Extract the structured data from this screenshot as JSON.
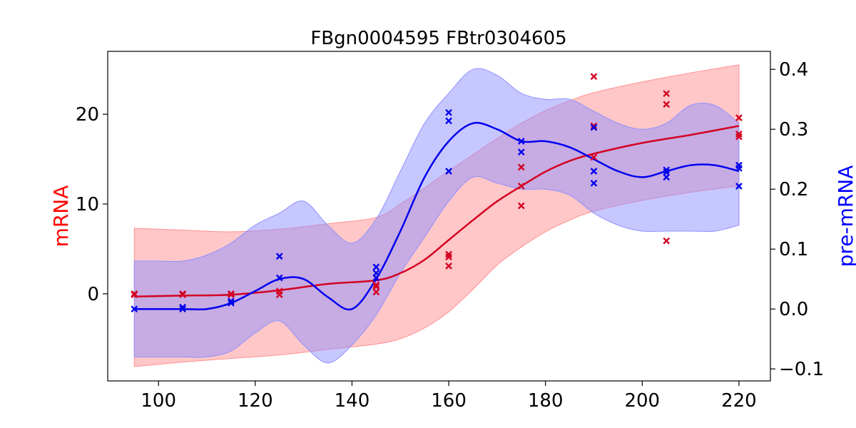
{
  "chart_data": {
    "type": "line",
    "title": "FBgn0004595 FBtr0304605",
    "xlabel": "",
    "xlim": [
      89.5,
      226.5
    ],
    "xticks": [
      "100",
      "120",
      "140",
      "160",
      "180",
      "200",
      "220"
    ],
    "y_left": {
      "label": "mRNA",
      "color": "#ff0000",
      "lim": [
        -9.7,
        27.0
      ],
      "ticks": [
        "0",
        "10",
        "20"
      ]
    },
    "y_right": {
      "label": "pre-mRNA",
      "color": "#0000ff",
      "lim": [
        -0.12,
        0.43
      ],
      "ticks": [
        "0.0",
        "0.1",
        "0.2",
        "0.3",
        "0.4"
      ]
    },
    "grid": false,
    "series": [
      {
        "axis": "left",
        "color": "#d40022",
        "band_color": "#ff9090",
        "mean": [
          [
            95,
            -0.3
          ],
          [
            105,
            -0.2
          ],
          [
            115,
            -0.1
          ],
          [
            125,
            0.4
          ],
          [
            135,
            1.1
          ],
          [
            145,
            1.5
          ],
          [
            150,
            2.3
          ],
          [
            155,
            3.8
          ],
          [
            160,
            6.0
          ],
          [
            165,
            8.2
          ],
          [
            170,
            10.3
          ],
          [
            175,
            12.0
          ],
          [
            180,
            13.6
          ],
          [
            185,
            14.8
          ],
          [
            190,
            15.6
          ],
          [
            200,
            16.8
          ],
          [
            210,
            17.7
          ],
          [
            220,
            18.7
          ]
        ],
        "upper": [
          [
            95,
            7.3
          ],
          [
            105,
            7.1
          ],
          [
            115,
            6.9
          ],
          [
            125,
            7.2
          ],
          [
            135,
            7.8
          ],
          [
            145,
            8.5
          ],
          [
            150,
            10.0
          ],
          [
            155,
            11.8
          ],
          [
            160,
            13.7
          ],
          [
            165,
            15.5
          ],
          [
            170,
            17.3
          ],
          [
            175,
            19.0
          ],
          [
            180,
            20.4
          ],
          [
            185,
            21.5
          ],
          [
            190,
            22.4
          ],
          [
            200,
            23.6
          ],
          [
            210,
            24.6
          ],
          [
            220,
            25.5
          ]
        ],
        "lower": [
          [
            95,
            -8.1
          ],
          [
            105,
            -7.6
          ],
          [
            115,
            -7.2
          ],
          [
            125,
            -6.8
          ],
          [
            135,
            -6.2
          ],
          [
            145,
            -5.6
          ],
          [
            150,
            -5.0
          ],
          [
            155,
            -3.8
          ],
          [
            160,
            -2.0
          ],
          [
            165,
            0.5
          ],
          [
            170,
            3.2
          ],
          [
            175,
            5.2
          ],
          [
            180,
            6.9
          ],
          [
            185,
            8.2
          ],
          [
            190,
            9.2
          ],
          [
            200,
            10.4
          ],
          [
            210,
            11.3
          ],
          [
            220,
            12.0
          ]
        ],
        "points": [
          [
            95,
            0.0
          ],
          [
            95,
            -0.1
          ],
          [
            105,
            0.0
          ],
          [
            105,
            -0.1
          ],
          [
            115,
            0.0
          ],
          [
            115,
            -0.1
          ],
          [
            125,
            0.3
          ],
          [
            125,
            -0.1
          ],
          [
            145,
            1.8
          ],
          [
            145,
            1.0
          ],
          [
            145,
            0.8
          ],
          [
            145,
            0.2
          ],
          [
            160,
            4.4
          ],
          [
            160,
            4.1
          ],
          [
            160,
            3.1
          ],
          [
            175,
            14.1
          ],
          [
            175,
            12.0
          ],
          [
            175,
            9.8
          ],
          [
            190,
            24.2
          ],
          [
            190,
            18.7
          ],
          [
            190,
            15.2
          ],
          [
            205,
            22.3
          ],
          [
            205,
            21.1
          ],
          [
            205,
            5.9
          ],
          [
            220,
            19.6
          ],
          [
            220,
            17.8
          ],
          [
            220,
            17.5
          ]
        ]
      },
      {
        "axis": "right",
        "color": "#0000ee",
        "band_color": "#9090ff",
        "mean": [
          [
            95,
            0.0
          ],
          [
            100,
            0.0
          ],
          [
            105,
            0.0
          ],
          [
            110,
            0.0
          ],
          [
            115,
            0.01
          ],
          [
            120,
            0.03
          ],
          [
            125,
            0.05
          ],
          [
            130,
            0.05
          ],
          [
            135,
            0.02
          ],
          [
            140,
            0.0
          ],
          [
            145,
            0.05
          ],
          [
            150,
            0.13
          ],
          [
            155,
            0.22
          ],
          [
            160,
            0.28
          ],
          [
            165,
            0.31
          ],
          [
            170,
            0.3
          ],
          [
            175,
            0.28
          ],
          [
            180,
            0.28
          ],
          [
            185,
            0.27
          ],
          [
            190,
            0.25
          ],
          [
            195,
            0.23
          ],
          [
            200,
            0.22
          ],
          [
            205,
            0.23
          ],
          [
            210,
            0.24
          ],
          [
            215,
            0.24
          ],
          [
            220,
            0.23
          ]
        ],
        "upper": [
          [
            95,
            0.08
          ],
          [
            100,
            0.08
          ],
          [
            105,
            0.08
          ],
          [
            110,
            0.09
          ],
          [
            115,
            0.11
          ],
          [
            120,
            0.14
          ],
          [
            125,
            0.16
          ],
          [
            130,
            0.18
          ],
          [
            135,
            0.14
          ],
          [
            140,
            0.11
          ],
          [
            145,
            0.15
          ],
          [
            150,
            0.23
          ],
          [
            155,
            0.31
          ],
          [
            160,
            0.36
          ],
          [
            165,
            0.4
          ],
          [
            170,
            0.39
          ],
          [
            175,
            0.36
          ],
          [
            180,
            0.35
          ],
          [
            185,
            0.35
          ],
          [
            190,
            0.33
          ],
          [
            195,
            0.31
          ],
          [
            200,
            0.3
          ],
          [
            205,
            0.31
          ],
          [
            210,
            0.34
          ],
          [
            215,
            0.34
          ],
          [
            220,
            0.31
          ]
        ],
        "lower": [
          [
            95,
            -0.08
          ],
          [
            100,
            -0.08
          ],
          [
            105,
            -0.08
          ],
          [
            110,
            -0.08
          ],
          [
            115,
            -0.07
          ],
          [
            120,
            -0.04
          ],
          [
            125,
            -0.02
          ],
          [
            130,
            -0.06
          ],
          [
            135,
            -0.09
          ],
          [
            140,
            -0.06
          ],
          [
            145,
            -0.01
          ],
          [
            150,
            0.06
          ],
          [
            155,
            0.12
          ],
          [
            160,
            0.18
          ],
          [
            165,
            0.22
          ],
          [
            170,
            0.21
          ],
          [
            175,
            0.2
          ],
          [
            180,
            0.2
          ],
          [
            185,
            0.19
          ],
          [
            190,
            0.16
          ],
          [
            195,
            0.14
          ],
          [
            200,
            0.13
          ],
          [
            205,
            0.13
          ],
          [
            210,
            0.13
          ],
          [
            215,
            0.13
          ],
          [
            220,
            0.14
          ]
        ],
        "points": [
          [
            95,
            0.0
          ],
          [
            105,
            0.003
          ],
          [
            105,
            0.0
          ],
          [
            115,
            0.013
          ],
          [
            115,
            0.01
          ],
          [
            125,
            0.088
          ],
          [
            125,
            0.052
          ],
          [
            145,
            0.07
          ],
          [
            145,
            0.06
          ],
          [
            145,
            0.052
          ],
          [
            160,
            0.328
          ],
          [
            160,
            0.314
          ],
          [
            160,
            0.23
          ],
          [
            175,
            0.28
          ],
          [
            175,
            0.262
          ],
          [
            190,
            0.303
          ],
          [
            190,
            0.23
          ],
          [
            190,
            0.21
          ],
          [
            205,
            0.232
          ],
          [
            205,
            0.228
          ],
          [
            205,
            0.22
          ],
          [
            220,
            0.24
          ],
          [
            220,
            0.235
          ],
          [
            220,
            0.205
          ]
        ]
      }
    ]
  }
}
